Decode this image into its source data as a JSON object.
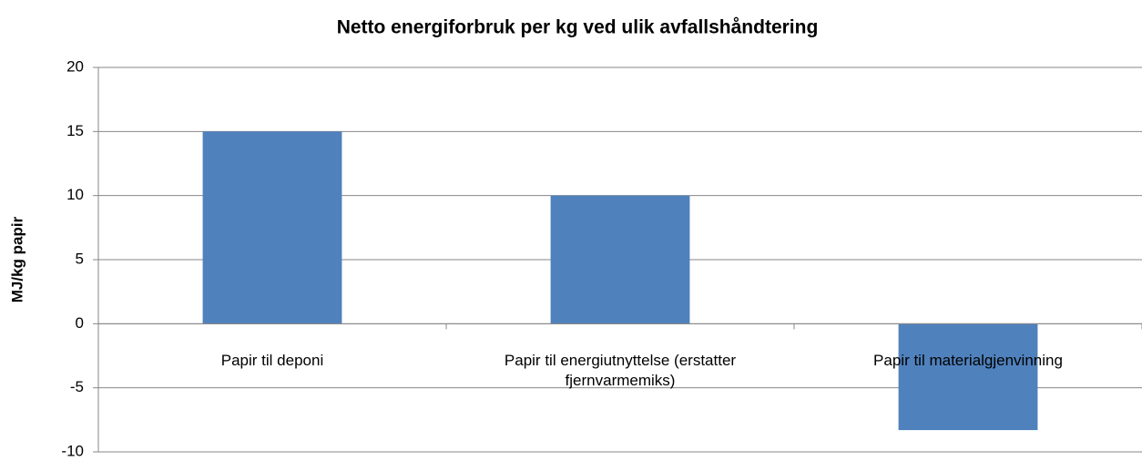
{
  "chart_data": {
    "type": "bar",
    "title": "Netto energiforbruk per kg ved ulik avfallshåndtering",
    "y_label": "MJ/kg papir",
    "categories": [
      "Papir til deponi",
      "Papir til energiutnyttelse (erstatter fjernvarmemiks)",
      "Papir til materialgjenvinning"
    ],
    "values": [
      15,
      10,
      -8.3
    ],
    "color": "#4f81bd",
    "ylim": [
      -10,
      20
    ],
    "yticks": [
      -10,
      -5,
      0,
      5,
      10,
      15,
      20
    ],
    "grid": true
  }
}
